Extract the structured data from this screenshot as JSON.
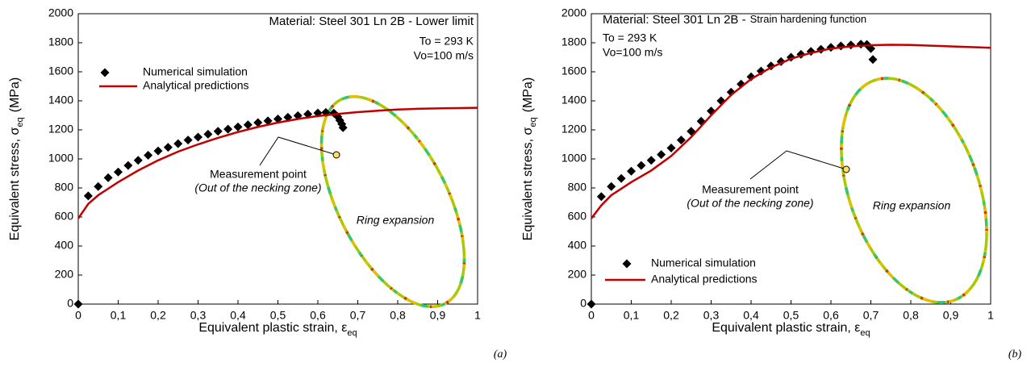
{
  "chart_data": [
    {
      "type": "scatter",
      "panel_label": "(a)",
      "xlabel": {
        "text": "Equivalent plastic strain, ε",
        "subscript": "eq"
      },
      "ylabel": {
        "text": "Equivalent stress, σ",
        "subscript": "eq",
        "unit": "(MPa)"
      },
      "xlim": [
        0,
        1
      ],
      "ylim": [
        0,
        2000
      ],
      "xticks": [
        0,
        {
          "value": 0.1,
          "label": "0,1"
        },
        {
          "value": 0.2,
          "label": "0,2"
        },
        {
          "value": 0.3,
          "label": "0,3"
        },
        {
          "value": 0.4,
          "label": "0,4"
        },
        {
          "value": 0.5,
          "label": "0,5"
        },
        {
          "value": 0.6,
          "label": "0,6"
        },
        {
          "value": 0.7,
          "label": "0,7"
        },
        {
          "value": 0.8,
          "label": "0,8"
        },
        {
          "value": 0.9,
          "label": "0,9"
        },
        1
      ],
      "yticks": [
        0,
        200,
        400,
        600,
        800,
        1000,
        1200,
        1400,
        1600,
        1800,
        2000
      ],
      "legend": "upper left",
      "annotations": {
        "material": "Material: Steel 301 Ln 2B - Lower limit",
        "temperature": "To = 293 K",
        "velocity": "Vo=100 m/s",
        "measurement": "Measurement point",
        "measurement_note": "(Out of the necking zone)",
        "ring": "Ring expansion"
      },
      "series": [
        {
          "name": "Numerical simulation",
          "style": "markers",
          "color": "#000000",
          "x": [
            0,
            0.025,
            0.05,
            0.075,
            0.1,
            0.125,
            0.15,
            0.175,
            0.2,
            0.225,
            0.25,
            0.275,
            0.3,
            0.325,
            0.35,
            0.375,
            0.4,
            0.425,
            0.45,
            0.475,
            0.5,
            0.525,
            0.55,
            0.575,
            0.6,
            0.62,
            0.64,
            0.65,
            0.655,
            0.66,
            0.663
          ],
          "values": [
            0,
            745,
            810,
            870,
            910,
            955,
            990,
            1025,
            1055,
            1080,
            1105,
            1130,
            1150,
            1170,
            1190,
            1205,
            1220,
            1235,
            1250,
            1262,
            1275,
            1287,
            1298,
            1308,
            1316,
            1320,
            1315,
            1290,
            1265,
            1240,
            1215
          ]
        },
        {
          "name": "Analytical predictions",
          "style": "line",
          "color": "#c00000",
          "x": [
            0,
            0.025,
            0.05,
            0.1,
            0.15,
            0.2,
            0.25,
            0.3,
            0.35,
            0.4,
            0.45,
            0.5,
            0.55,
            0.6,
            0.65,
            0.7,
            0.75,
            0.8,
            0.85,
            0.9,
            0.95,
            1
          ],
          "values": [
            590,
            690,
            750,
            840,
            920,
            990,
            1050,
            1100,
            1145,
            1185,
            1220,
            1250,
            1275,
            1295,
            1310,
            1322,
            1332,
            1340,
            1345,
            1348,
            1350,
            1352
          ]
        }
      ]
    },
    {
      "type": "scatter",
      "panel_label": "(b)",
      "xlabel": {
        "text": "Equivalent plastic strain, ε",
        "subscript": "eq"
      },
      "ylabel": {
        "text": "Equivalent stress, σ",
        "subscript": "eq",
        "unit": "(MPa)"
      },
      "xlim": [
        0,
        1
      ],
      "ylim": [
        0,
        2000
      ],
      "xticks": [
        0,
        {
          "value": 0.1,
          "label": "0,1"
        },
        {
          "value": 0.2,
          "label": "0,2"
        },
        {
          "value": 0.3,
          "label": "0,3"
        },
        {
          "value": 0.4,
          "label": "0,4"
        },
        {
          "value": 0.5,
          "label": "0,5"
        },
        {
          "value": 0.6,
          "label": "0,6"
        },
        {
          "value": 0.7,
          "label": "0,7"
        },
        {
          "value": 0.8,
          "label": "0,8"
        },
        {
          "value": 0.9,
          "label": "0,9"
        },
        1
      ],
      "yticks": [
        0,
        200,
        400,
        600,
        800,
        1000,
        1200,
        1400,
        1600,
        1800,
        2000
      ],
      "legend": "lower left",
      "annotations": {
        "material": "Material: Steel 301 Ln 2B -",
        "material_detail": "Strain hardening function",
        "temperature": "To = 293 K",
        "velocity": "Vo=100 m/s",
        "measurement": "Measurement point",
        "measurement_note": "(Out of the necking zone)",
        "ring": "Ring expansion"
      },
      "series": [
        {
          "name": "Numerical simulation",
          "style": "markers",
          "color": "#000000",
          "x": [
            0,
            0.025,
            0.05,
            0.075,
            0.1,
            0.125,
            0.15,
            0.175,
            0.2,
            0.225,
            0.25,
            0.275,
            0.3,
            0.325,
            0.35,
            0.375,
            0.4,
            0.425,
            0.45,
            0.475,
            0.5,
            0.525,
            0.55,
            0.575,
            0.6,
            0.625,
            0.65,
            0.675,
            0.69,
            0.7,
            0.705
          ],
          "values": [
            0,
            740,
            810,
            865,
            915,
            955,
            990,
            1030,
            1075,
            1130,
            1190,
            1260,
            1330,
            1400,
            1460,
            1515,
            1565,
            1605,
            1640,
            1670,
            1700,
            1720,
            1740,
            1755,
            1768,
            1778,
            1785,
            1790,
            1788,
            1760,
            1685
          ]
        },
        {
          "name": "Analytical predictions",
          "style": "line",
          "color": "#c00000",
          "x": [
            0,
            0.025,
            0.05,
            0.1,
            0.15,
            0.2,
            0.25,
            0.3,
            0.35,
            0.4,
            0.45,
            0.5,
            0.55,
            0.6,
            0.65,
            0.7,
            0.75,
            0.8,
            0.85,
            0.9,
            0.95,
            1
          ],
          "values": [
            590,
            680,
            750,
            840,
            920,
            1020,
            1150,
            1300,
            1440,
            1550,
            1630,
            1690,
            1730,
            1760,
            1775,
            1783,
            1786,
            1785,
            1780,
            1775,
            1770,
            1765
          ]
        }
      ]
    }
  ]
}
